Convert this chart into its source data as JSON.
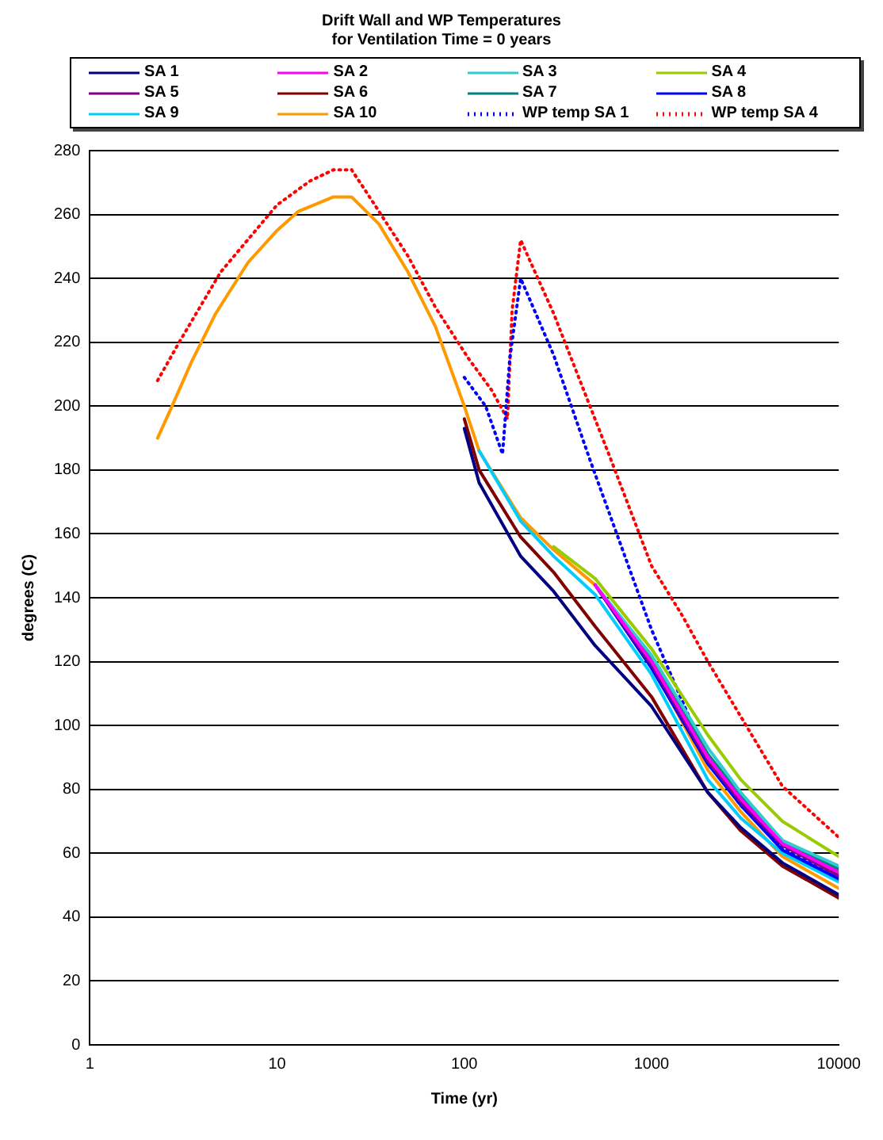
{
  "chart_data": {
    "type": "line",
    "title": "Drift Wall and WP Temperatures",
    "subtitle": "for Ventilation Time = 0 years",
    "xlabel": "Time (yr)",
    "ylabel": "degrees (C)",
    "log": "x",
    "xlim": [
      1,
      10000
    ],
    "xticks": [
      1,
      10,
      100,
      1000,
      10000
    ],
    "ylim": [
      0,
      280
    ],
    "yticks": [
      0,
      20,
      40,
      60,
      80,
      100,
      120,
      140,
      160,
      180,
      200,
      220,
      240,
      260,
      280
    ],
    "grid": "y",
    "legend": "top",
    "marker": "none",
    "line_style": "solid",
    "x": [
      2.3,
      2.7,
      3.5,
      4.7,
      7,
      10,
      13,
      20,
      25,
      35,
      50,
      70,
      100,
      120,
      200,
      300,
      500,
      1000,
      2000,
      3000,
      5000,
      10000
    ],
    "series": [
      {
        "name": "SA 1",
        "color": "#000080",
        "values": [
          null,
          null,
          null,
          null,
          null,
          null,
          null,
          null,
          null,
          null,
          null,
          null,
          193,
          176,
          153,
          142,
          125,
          106,
          79,
          68,
          57,
          47
        ]
      },
      {
        "name": "SA 2",
        "color": "#ff00ff",
        "values": [
          null,
          null,
          null,
          null,
          null,
          null,
          null,
          null,
          null,
          null,
          null,
          null,
          null,
          null,
          null,
          null,
          144,
          120,
          90,
          77,
          63,
          54
        ]
      },
      {
        "name": "SA 3",
        "color": "#33cccc",
        "values": [
          null,
          null,
          null,
          null,
          null,
          null,
          null,
          null,
          null,
          null,
          null,
          null,
          null,
          null,
          null,
          null,
          144,
          122,
          93,
          79,
          64,
          56
        ]
      },
      {
        "name": "SA 4",
        "color": "#99cc00",
        "values": [
          null,
          null,
          null,
          null,
          null,
          null,
          null,
          null,
          null,
          null,
          null,
          null,
          null,
          null,
          null,
          156,
          146,
          124,
          97,
          83,
          70,
          59
        ]
      },
      {
        "name": "SA 5",
        "color": "#800080",
        "values": [
          null,
          null,
          null,
          null,
          null,
          null,
          null,
          null,
          null,
          null,
          null,
          null,
          null,
          null,
          null,
          null,
          144,
          119,
          89,
          76,
          62.5,
          53
        ]
      },
      {
        "name": "SA 6",
        "color": "#800000",
        "values": [
          null,
          null,
          null,
          null,
          null,
          null,
          null,
          null,
          null,
          null,
          null,
          null,
          196,
          180,
          159,
          148,
          131,
          109,
          79,
          67,
          56,
          46
        ]
      },
      {
        "name": "SA 7",
        "color": "#008080",
        "values": [
          null,
          null,
          null,
          null,
          null,
          null,
          null,
          null,
          null,
          null,
          null,
          null,
          null,
          null,
          null,
          null,
          144,
          121,
          91,
          78,
          64,
          55
        ]
      },
      {
        "name": "SA 8",
        "color": "#0000ff",
        "values": [
          null,
          null,
          null,
          null,
          null,
          null,
          null,
          null,
          null,
          null,
          null,
          null,
          null,
          null,
          null,
          null,
          144,
          118,
          88,
          75,
          61,
          52
        ]
      },
      {
        "name": "SA 9",
        "color": "#00ccff",
        "values": [
          null,
          null,
          null,
          null,
          null,
          null,
          null,
          null,
          null,
          null,
          null,
          null,
          null,
          186,
          164,
          153,
          141,
          116,
          83,
          71,
          60,
          51
        ]
      },
      {
        "name": "SA 10",
        "color": "#ff9900",
        "values": [
          190,
          199,
          214,
          229,
          245,
          255,
          261,
          265.5,
          265.5,
          257,
          242,
          225,
          200,
          186,
          165,
          155,
          144,
          119,
          86,
          73,
          59,
          49
        ]
      },
      {
        "name": "WP temp SA 1",
        "color": "#0000ff",
        "line_style": "dotted",
        "x": [
          100,
          130,
          160,
          175,
          200,
          300,
          470,
          1000,
          2000,
          3000,
          5000,
          10000
        ],
        "values": [
          209,
          200,
          185,
          215,
          240,
          216,
          183,
          130,
          89,
          75,
          62,
          53
        ]
      },
      {
        "name": "WP temp SA 4",
        "color": "#ff0000",
        "line_style": "dotted",
        "x": [
          2.3,
          3,
          5,
          10,
          15,
          20,
          25,
          30,
          50,
          70,
          105,
          140,
          170,
          180,
          200,
          300,
          600,
          1000,
          1440,
          2000,
          5000,
          10000
        ],
        "values": [
          208,
          220,
          242,
          263,
          270.5,
          274,
          274,
          267,
          247,
          231,
          215,
          205,
          196,
          230,
          252,
          229,
          184,
          150,
          135,
          120,
          81,
          65
        ]
      }
    ]
  }
}
